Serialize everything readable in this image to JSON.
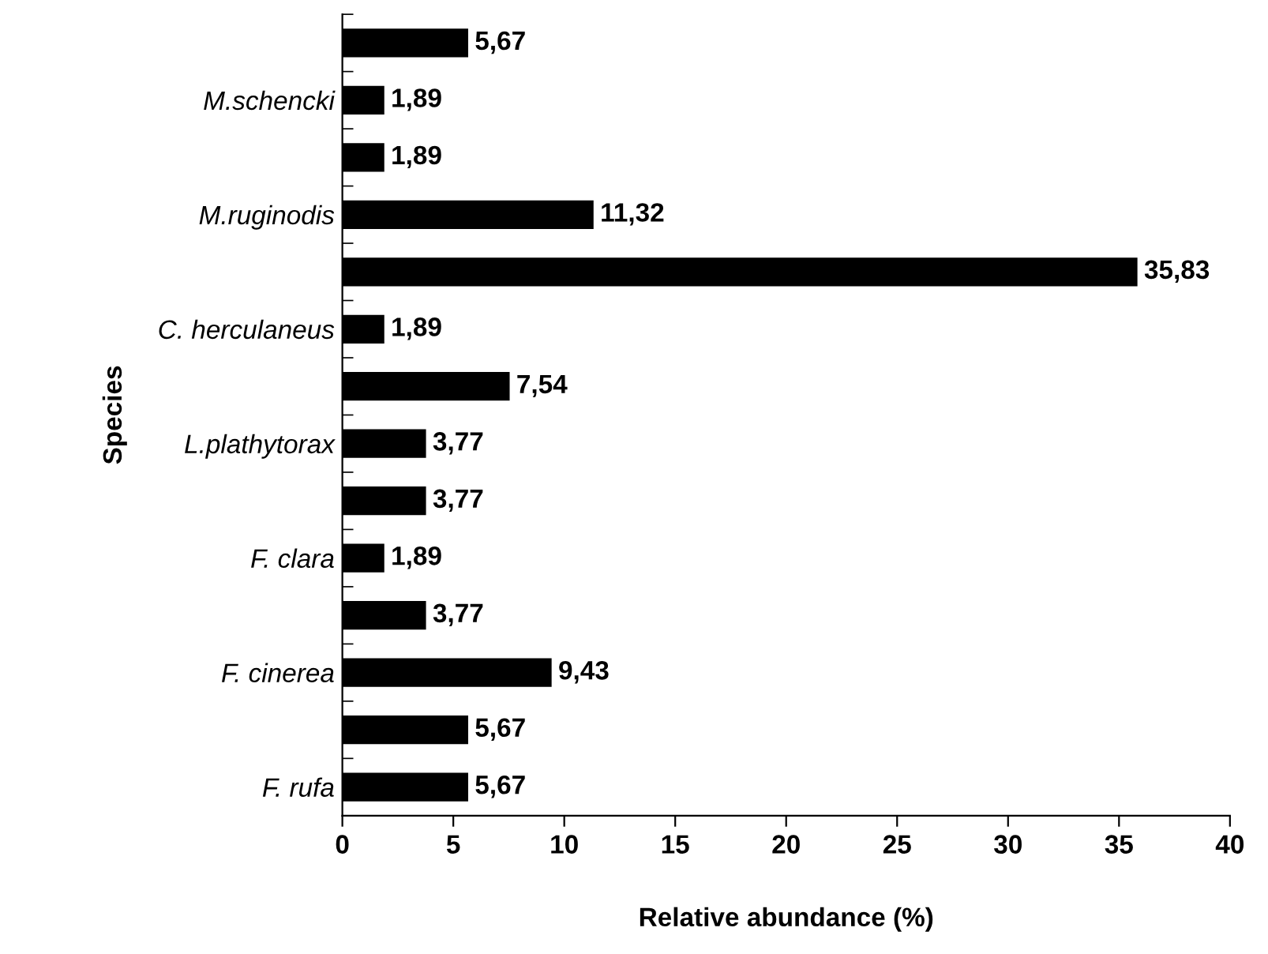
{
  "chart_data": {
    "type": "bar",
    "orientation": "horizontal",
    "xlabel": "Relative abundance (%)",
    "ylabel": "Species",
    "categories": [
      null,
      "M.schencki",
      null,
      "M.ruginodis",
      null,
      "C. herculaneus",
      null,
      "L.plathytorax",
      null,
      "F. clara",
      null,
      "F. cinerea",
      null,
      "F. rufa"
    ],
    "values": [
      5.67,
      1.89,
      1.89,
      11.32,
      35.83,
      1.89,
      7.54,
      3.77,
      3.77,
      1.89,
      3.77,
      9.43,
      5.67,
      5.67
    ],
    "value_labels": [
      "5,67",
      "1,89",
      "1,89",
      "11,32",
      "35,83",
      "1,89",
      "7,54",
      "3,77",
      "3,77",
      "1,89",
      "3,77",
      "9,43",
      "5,67",
      "5,67"
    ],
    "color": "#000000",
    "xlim": [
      0,
      40
    ],
    "xticks": [
      0,
      5,
      10,
      15,
      20,
      25,
      30,
      35,
      40
    ],
    "grid": false
  }
}
